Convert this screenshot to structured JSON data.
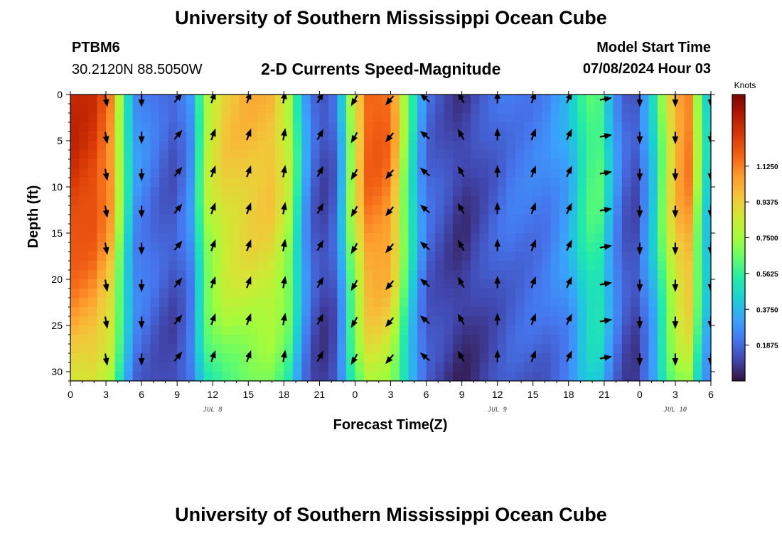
{
  "header": {
    "title": "University of Southern Mississippi Ocean Cube",
    "station": "PTBM6",
    "coords": "30.2120N  88.5050W",
    "chart_title": "2-D Currents Speed-Magnitude",
    "model_label": "Model Start Time",
    "model_time": "07/08/2024 Hour 03"
  },
  "footer": {
    "title": "University of Southern Mississippi Ocean Cube"
  },
  "chart_data": {
    "type": "heatmap",
    "title": "2-D Currents Speed-Magnitude",
    "xlabel": "Forecast Time(Z)",
    "ylabel": "Depth (ft)",
    "x_hours": [
      0,
      54
    ],
    "y_depth_ft": [
      0,
      31
    ],
    "x_tick_labels": [
      "0",
      "3",
      "6",
      "9",
      "12",
      "15",
      "18",
      "21",
      "0",
      "3",
      "6",
      "9",
      "12",
      "15",
      "18",
      "21",
      "0",
      "3",
      "6"
    ],
    "y_ticks": [
      0,
      5,
      10,
      15,
      20,
      25,
      30
    ],
    "day_labels": [
      {
        "label": "JUL 8",
        "hour": 12
      },
      {
        "label": "JUL 9",
        "hour": 36
      },
      {
        "label": "JUL 10",
        "hour": 51
      }
    ],
    "colorbar": {
      "title": "Knots",
      "range": [
        0.0,
        1.5
      ],
      "tick_values": [
        0.1875,
        0.375,
        0.5625,
        0.75,
        0.9375,
        1.125
      ],
      "tick_labels": [
        "0.1875",
        "0.3750",
        "0.5625",
        "0.7500",
        "0.9375",
        "1.1250"
      ],
      "colors": [
        "#30123b",
        "#4145ab",
        "#4675ed",
        "#39a2fc",
        "#1bcfd4",
        "#24eca6",
        "#61fc6c",
        "#a4fc3b",
        "#d1e834",
        "#f3c63a",
        "#fe9b2d",
        "#f36315",
        "#d93806",
        "#b11901",
        "#7a0402"
      ]
    },
    "speed_profile": {
      "hours": [
        0,
        2,
        3.5,
        4.5,
        5.5,
        7,
        8.5,
        10,
        11.5,
        13,
        15,
        17,
        18.5,
        19.5,
        20.5,
        21.5,
        22.5,
        23.5,
        25,
        26.5,
        27.5,
        28.5,
        30,
        32,
        33,
        35,
        37,
        40,
        42,
        43.5,
        44.5,
        45.5,
        46.5,
        47.5,
        49,
        50.5,
        52,
        53.2,
        54
      ],
      "speed_knots": [
        1.35,
        1.3,
        1.1,
        0.6,
        0.3,
        0.22,
        0.15,
        0.25,
        0.8,
        0.95,
        1.0,
        1.0,
        0.8,
        0.4,
        0.18,
        0.12,
        0.2,
        0.7,
        1.2,
        1.2,
        1.0,
        0.6,
        0.2,
        0.12,
        0.08,
        0.15,
        0.22,
        0.25,
        0.35,
        0.6,
        0.65,
        0.4,
        0.2,
        0.12,
        0.4,
        0.9,
        1.2,
        0.6,
        0.35
      ]
    },
    "vector_hours": [
      3,
      6,
      9,
      12,
      15,
      18,
      21,
      24,
      27,
      30,
      33,
      36,
      39,
      42,
      45,
      48,
      51,
      54
    ],
    "vector_depths_ft": [
      0.5,
      4.5,
      8.5,
      12.5,
      16.5,
      20.5,
      24.5,
      28.5
    ],
    "vector_direction_deg_from_up": [
      170,
      180,
      40,
      20,
      20,
      10,
      30,
      210,
      220,
      310,
      330,
      0,
      20,
      25,
      80,
      180,
      180,
      180
    ]
  }
}
